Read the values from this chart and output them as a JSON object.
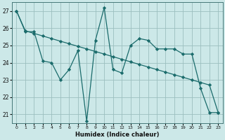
{
  "xlabel": "Humidex (Indice chaleur)",
  "xlim": [
    -0.5,
    23.5
  ],
  "ylim": [
    20.5,
    27.5
  ],
  "xticks": [
    0,
    1,
    2,
    3,
    4,
    5,
    6,
    7,
    8,
    9,
    10,
    11,
    12,
    13,
    14,
    15,
    16,
    17,
    18,
    19,
    20,
    21,
    22,
    23
  ],
  "yticks": [
    21,
    22,
    23,
    24,
    25,
    26,
    27
  ],
  "bg_color": "#cce8e8",
  "grid_color": "#9bbfbf",
  "line_color": "#1a6b6b",
  "s1_x": [
    0,
    1,
    2,
    3,
    4,
    5,
    6,
    7,
    8,
    9,
    10,
    11,
    12,
    13,
    14,
    15,
    16,
    17,
    18,
    19,
    20,
    21,
    22,
    23
  ],
  "s1_y": [
    27.0,
    25.8,
    25.8,
    24.1,
    24.0,
    23.0,
    23.6,
    24.7,
    20.6,
    25.3,
    27.2,
    23.6,
    23.4,
    25.0,
    25.4,
    25.3,
    24.8,
    24.8,
    24.8,
    24.5,
    24.5,
    22.5,
    21.1,
    21.1
  ],
  "s2_x": [
    0,
    1,
    2,
    3,
    4,
    5,
    6,
    7,
    8,
    9,
    10,
    11,
    12,
    13,
    14,
    15,
    16,
    17,
    18,
    19,
    20,
    21,
    22,
    23
  ],
  "s2_y": [
    27.0,
    25.85,
    25.7,
    25.55,
    25.4,
    25.25,
    25.1,
    24.95,
    24.8,
    24.65,
    24.5,
    24.35,
    24.2,
    24.05,
    23.9,
    23.75,
    23.6,
    23.45,
    23.3,
    23.15,
    23.0,
    22.85,
    22.7,
    21.1
  ]
}
